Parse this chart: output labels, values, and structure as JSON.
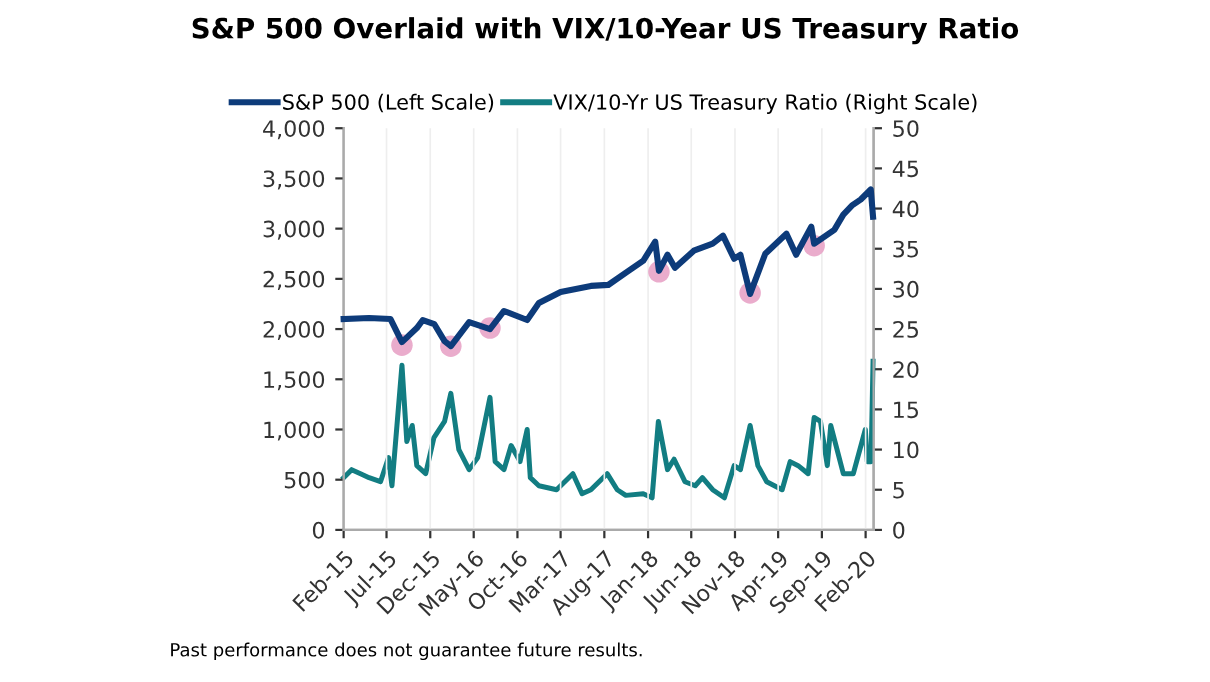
{
  "chart_data": {
    "type": "line",
    "title": "S&P 500 Overlaid with VIX/10-Year US Treasury Ratio",
    "series": [
      {
        "name": "S&P 500 (Left Scale)",
        "color": "#0d3b7a",
        "x": [
          "2015-02-01",
          "2015-05-01",
          "2015-07-15",
          "2015-08-24",
          "2015-10-15",
          "2015-11-05",
          "2015-12-15",
          "2016-01-20",
          "2016-02-11",
          "2016-04-15",
          "2016-06-27",
          "2016-08-15",
          "2016-11-04",
          "2016-12-15",
          "2017-03-01",
          "2017-06-15",
          "2017-08-15",
          "2017-10-15",
          "2017-12-15",
          "2018-01-26",
          "2018-02-08",
          "2018-03-10",
          "2018-04-05",
          "2018-06-10",
          "2018-08-15",
          "2018-09-20",
          "2018-10-29",
          "2018-11-20",
          "2018-12-24",
          "2019-02-15",
          "2019-04-30",
          "2019-06-03",
          "2019-07-26",
          "2019-08-05",
          "2019-10-15",
          "2019-11-15",
          "2019-12-15",
          "2020-01-15",
          "2020-02-19",
          "2020-02-27"
        ],
        "values": [
          2100,
          2110,
          2100,
          1870,
          2010,
          2090,
          2050,
          1880,
          1830,
          2070,
          2000,
          2180,
          2090,
          2260,
          2370,
          2430,
          2440,
          2560,
          2680,
          2870,
          2580,
          2740,
          2610,
          2780,
          2850,
          2930,
          2700,
          2740,
          2350,
          2750,
          2950,
          2740,
          3020,
          2850,
          2990,
          3140,
          3230,
          3290,
          3390,
          3120
        ]
      },
      {
        "name": "VIX/10-Yr US Treasury Ratio (Right Scale)",
        "color": "#127d82",
        "axis": "y2",
        "x": [
          "2015-02-01",
          "2015-03-01",
          "2015-04-01",
          "2015-05-01",
          "2015-06-10",
          "2015-07-08",
          "2015-07-20",
          "2015-08-24",
          "2015-09-10",
          "2015-09-29",
          "2015-10-15",
          "2015-11-15",
          "2015-12-14",
          "2016-01-20",
          "2016-02-11",
          "2016-03-10",
          "2016-04-15",
          "2016-05-15",
          "2016-06-27",
          "2016-07-15",
          "2016-08-15",
          "2016-09-09",
          "2016-10-10",
          "2016-11-04",
          "2016-11-15",
          "2016-12-15",
          "2017-02-15",
          "2017-04-13",
          "2017-05-15",
          "2017-06-15",
          "2017-08-11",
          "2017-09-15",
          "2017-10-15",
          "2017-12-15",
          "2018-01-15",
          "2018-02-06",
          "2018-03-10",
          "2018-04-02",
          "2018-05-10",
          "2018-06-15",
          "2018-07-10",
          "2018-08-15",
          "2018-09-25",
          "2018-10-29",
          "2018-11-20",
          "2018-12-24",
          "2019-01-20",
          "2019-02-20",
          "2019-04-15",
          "2019-05-13",
          "2019-06-10",
          "2019-07-15",
          "2019-08-05",
          "2019-08-27",
          "2019-09-20",
          "2019-10-02",
          "2019-11-15",
          "2019-12-20",
          "2020-01-31",
          "2020-02-07",
          "2020-02-20",
          "2020-02-27"
        ],
        "values": [
          6.5,
          7.5,
          7,
          6.5,
          6,
          9,
          5.5,
          20.5,
          11,
          13,
          8,
          7,
          11.5,
          13.5,
          17,
          10,
          7.5,
          9,
          16.5,
          8.5,
          7.5,
          10.5,
          8.5,
          12.5,
          6.5,
          5.5,
          5,
          7,
          4.5,
          5,
          7,
          5,
          4.3,
          4.5,
          4,
          13.5,
          7.5,
          8.8,
          6,
          5.5,
          6.5,
          5,
          4,
          8,
          7.5,
          13,
          8,
          6,
          5,
          8.5,
          8,
          7,
          14,
          13.5,
          8,
          13,
          7,
          7,
          12.5,
          8.5,
          8.5,
          21
        ]
      },
      {
        "type": "scatter",
        "marker": "circle",
        "color": "#e8a3c6",
        "x": [
          "2015-08-24",
          "2016-02-11",
          "2016-06-27",
          "2018-02-08",
          "2018-12-24",
          "2019-08-05"
        ],
        "values": [
          1840,
          1830,
          2010,
          2570,
          2360,
          2830
        ]
      }
    ],
    "xlim": [
      "2015-02-01",
      "2020-02-29"
    ],
    "xticks": [
      {
        "value": "2015-02-01",
        "label": "Feb-15"
      },
      {
        "value": "2015-07-01",
        "label": "Jul-15"
      },
      {
        "value": "2015-12-01",
        "label": "Dec-15"
      },
      {
        "value": "2016-05-01",
        "label": "May-16"
      },
      {
        "value": "2016-10-01",
        "label": "Oct-16"
      },
      {
        "value": "2017-03-01",
        "label": "Mar-17"
      },
      {
        "value": "2017-08-01",
        "label": "Aug-17"
      },
      {
        "value": "2018-01-01",
        "label": "Jan-18"
      },
      {
        "value": "2018-06-01",
        "label": "Jun-18"
      },
      {
        "value": "2018-11-01",
        "label": "Nov-18"
      },
      {
        "value": "2019-04-01",
        "label": "Apr-19"
      },
      {
        "value": "2019-09-01",
        "label": "Sep-19"
      },
      {
        "value": "2020-02-01",
        "label": "Feb-20"
      }
    ],
    "ylim": [
      0,
      4000
    ],
    "yticks": [
      0,
      {
        "value": 500,
        "label": "500"
      },
      {
        "value": 1000,
        "label": "1,000"
      },
      {
        "value": 1500,
        "label": "1,500"
      },
      {
        "value": 2000,
        "label": "2,000"
      },
      {
        "value": 2500,
        "label": "2,500"
      },
      {
        "value": 3000,
        "label": "3,000"
      },
      {
        "value": 3500,
        "label": "3,500"
      },
      {
        "value": 4000,
        "label": "4,000"
      }
    ],
    "y2lim": [
      0,
      50
    ],
    "y2ticks": [
      0,
      5,
      10,
      15,
      20,
      25,
      30,
      35,
      40,
      45,
      50
    ],
    "grid": "x",
    "legend": "top",
    "marker": "none",
    "line_style": "solid",
    "annotations": [
      "Past performance does not guarantee future results."
    ]
  }
}
